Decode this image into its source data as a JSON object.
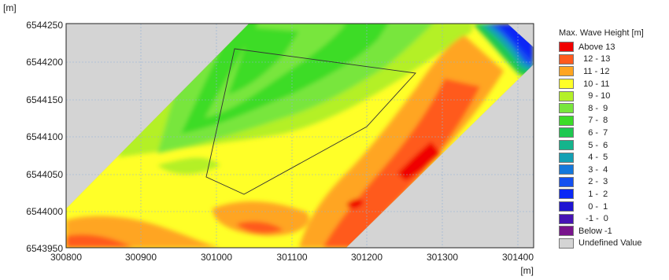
{
  "map": {
    "y_unit": "[m]",
    "x_unit": "[m]",
    "y_ticks": [
      "6544250",
      "6544200",
      "6544150",
      "6544100",
      "6544050",
      "6544000",
      "6543950"
    ],
    "x_ticks": [
      "300800",
      "300900",
      "301000",
      "301100",
      "301200",
      "301300",
      "301400"
    ],
    "x_range": [
      300800,
      301420
    ],
    "y_range": [
      6543950,
      6544260
    ],
    "undefined_color": "#d4d4d4",
    "grid": true
  },
  "legend": {
    "title": "Max. Wave Height [m]",
    "items": [
      {
        "label": "Above 13",
        "color": "#f00000"
      },
      {
        "label": "  12 - 13",
        "color": "#ff5a1e"
      },
      {
        "label": "  11 - 12",
        "color": "#ffa520"
      },
      {
        "label": "  10 - 11",
        "color": "#ffff28"
      },
      {
        "label": "    9 - 10",
        "color": "#b4f028"
      },
      {
        "label": "    8 -  9",
        "color": "#78e63c"
      },
      {
        "label": "    7 -  8",
        "color": "#3cdc28"
      },
      {
        "label": "    6 -  7",
        "color": "#1ec850"
      },
      {
        "label": "    5 -  6",
        "color": "#14b48c"
      },
      {
        "label": "    4 -  5",
        "color": "#14a0b4"
      },
      {
        "label": "    3 -  4",
        "color": "#1478dc"
      },
      {
        "label": "    2 -  3",
        "color": "#1450f0"
      },
      {
        "label": "    1 -  2",
        "color": "#0a28f5"
      },
      {
        "label": "    0 -  1",
        "color": "#1e14d2"
      },
      {
        "label": "   -1 -  0",
        "color": "#4614b4"
      },
      {
        "label": "Below -1",
        "color": "#78148c"
      },
      {
        "label": "Undefined Value",
        "color": "#d4d4d4"
      }
    ]
  }
}
